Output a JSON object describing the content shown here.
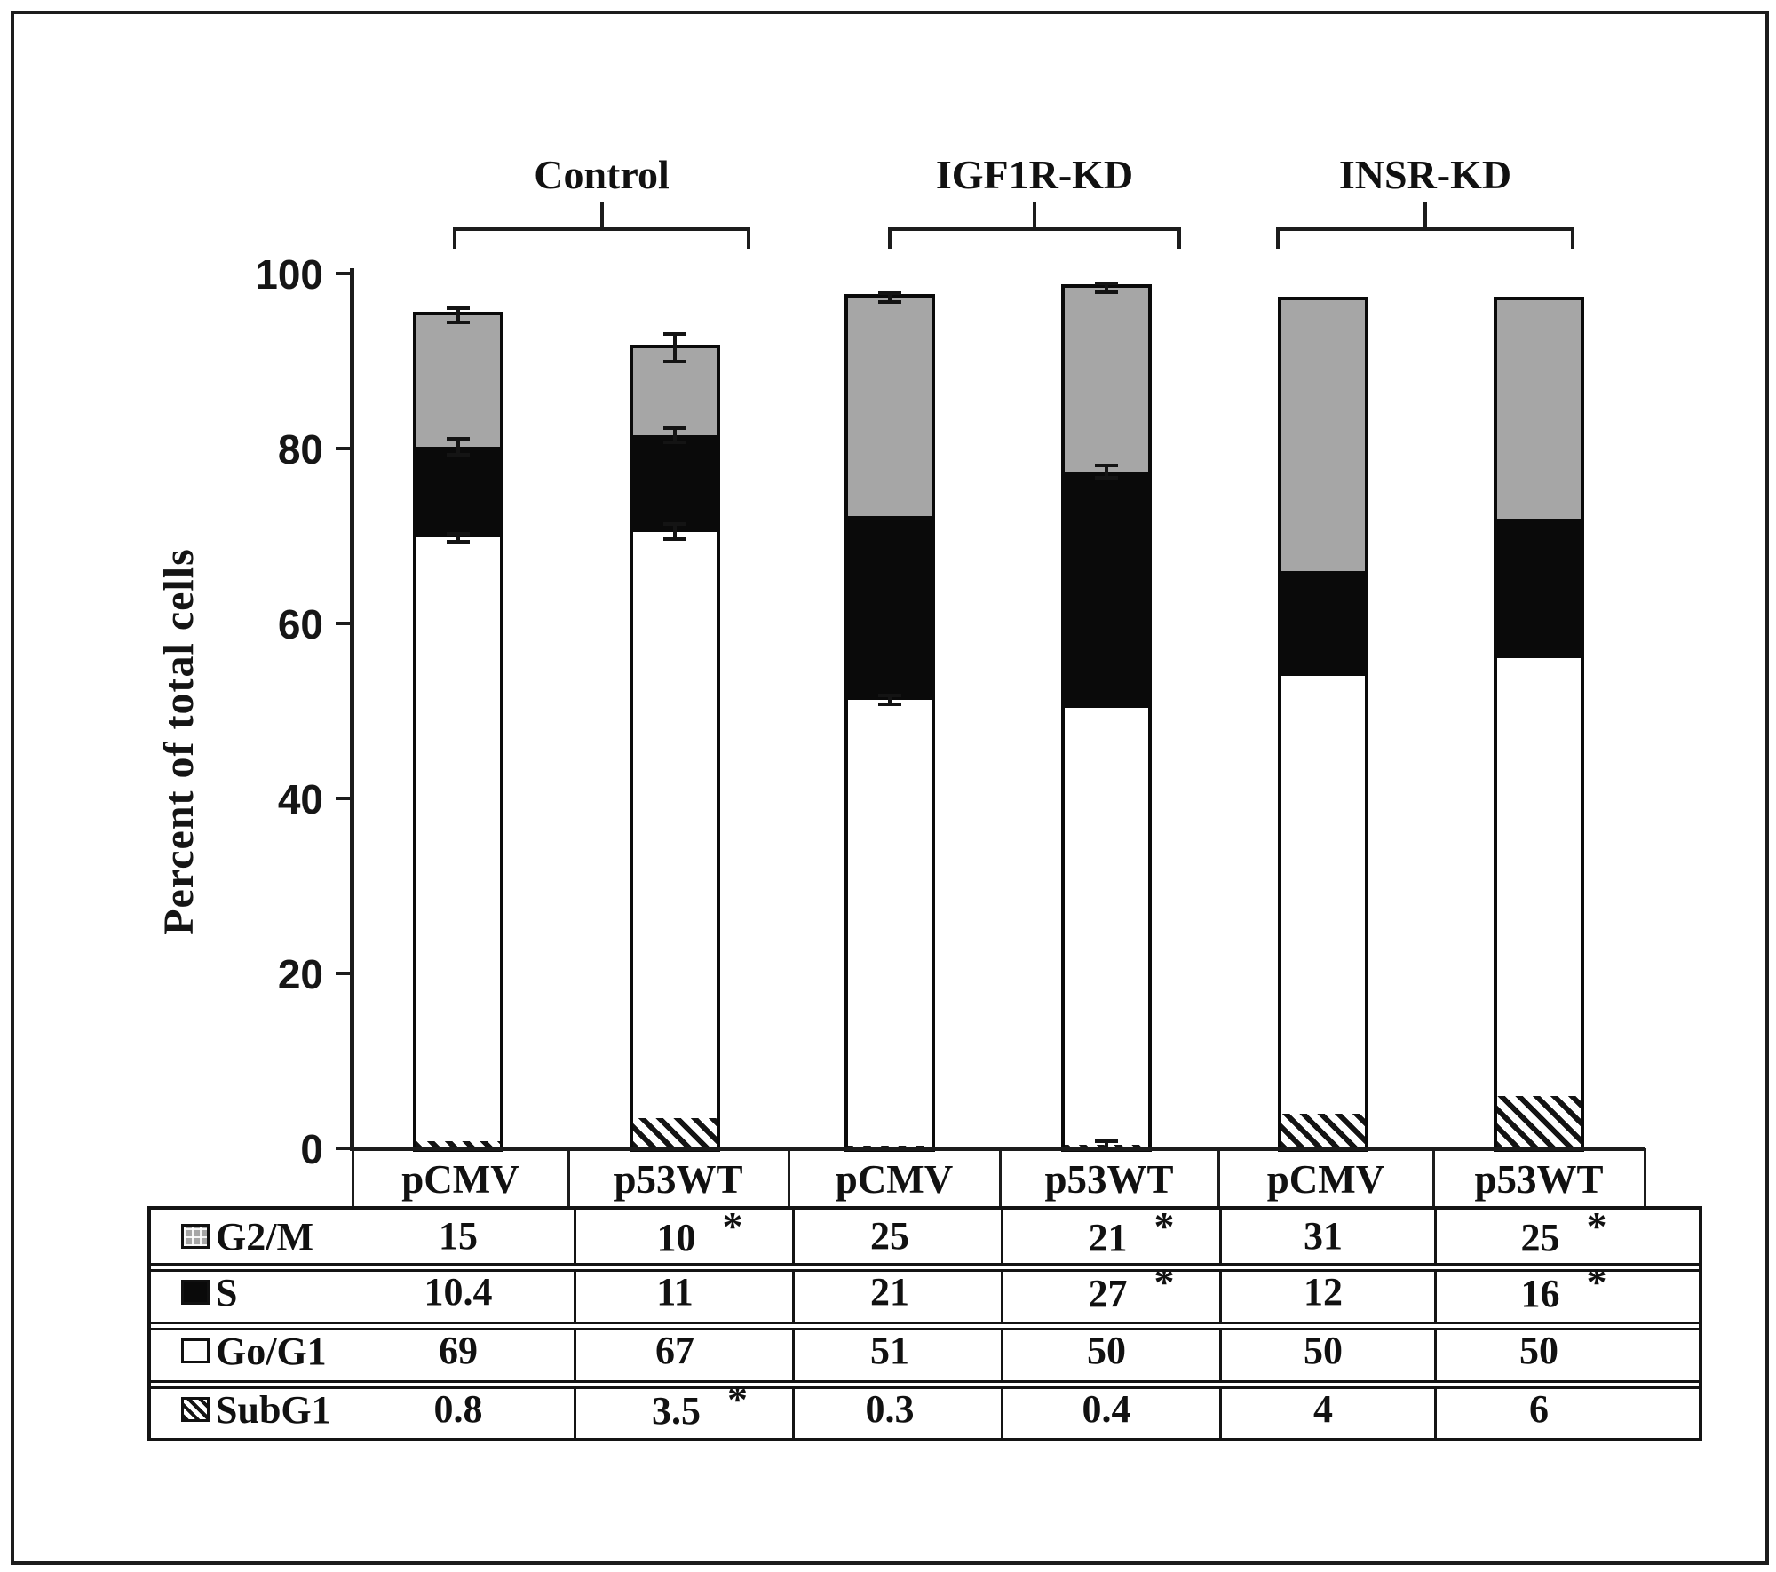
{
  "figure": {
    "ylabel": "Percent of total cells",
    "star_symbol": "*"
  },
  "chart_data": {
    "type": "bar",
    "stacked": true,
    "title": "",
    "xlabel": "",
    "ylabel": "Percent of total cells",
    "ylim": [
      0,
      100
    ],
    "ytick_labels": [
      "0",
      "20",
      "40",
      "60",
      "80",
      "100"
    ],
    "yticks": [
      0,
      20,
      40,
      60,
      80,
      100
    ],
    "grid": false,
    "legend_position": "table-left-column",
    "groups": [
      {
        "label": "Control",
        "bars": [
          0,
          1
        ]
      },
      {
        "label": "IGF1R-KD",
        "bars": [
          2,
          3
        ]
      },
      {
        "label": "INSR-KD",
        "bars": [
          4,
          5
        ]
      }
    ],
    "categories": [
      "pCMV",
      "p53WT",
      "pCMV",
      "p53WT",
      "pCMV",
      "p53WT"
    ],
    "stack_order_bottom_to_top": [
      "SubG1",
      "Go/G1",
      "S",
      "G2/M"
    ],
    "series": [
      {
        "name": "G2/M",
        "pattern": "gray-grid",
        "color": "#a6a6a6",
        "values": [
          15,
          10,
          25,
          21,
          31,
          25
        ]
      },
      {
        "name": "S",
        "pattern": "solid-black",
        "color": "#0a0a0a",
        "values": [
          10.4,
          11,
          21,
          27,
          12,
          16
        ]
      },
      {
        "name": "Go/G1",
        "pattern": "open-white",
        "color": "#ffffff",
        "values": [
          69,
          67,
          51,
          50,
          50,
          50
        ]
      },
      {
        "name": "SubG1",
        "pattern": "diagonal-hatch",
        "color": "#141414",
        "values": [
          0.8,
          3.5,
          0.3,
          0.4,
          4,
          6
        ]
      }
    ],
    "error_bars": [
      {
        "bar": 0,
        "at": 95.2,
        "half": 0.8
      },
      {
        "bar": 0,
        "at": 80.2,
        "half": 0.9
      },
      {
        "bar": 0,
        "at": 69.8,
        "half": 0.5
      },
      {
        "bar": 1,
        "at": 91.5,
        "half": 1.6
      },
      {
        "bar": 1,
        "at": 81.5,
        "half": 0.8
      },
      {
        "bar": 1,
        "at": 70.5,
        "half": 0.9
      },
      {
        "bar": 2,
        "at": 97.3,
        "half": 0.5
      },
      {
        "bar": 2,
        "at": 51.3,
        "half": 0.5
      },
      {
        "bar": 3,
        "at": 98.4,
        "half": 0.5
      },
      {
        "bar": 3,
        "at": 77.4,
        "half": 0.7
      },
      {
        "bar": 3,
        "at": 0.4,
        "half": 0.4
      }
    ]
  },
  "table": {
    "column_headers": [
      "pCMV",
      "p53WT",
      "pCMV",
      "p53WT",
      "pCMV",
      "p53WT"
    ],
    "rows": [
      {
        "legend": "G2/M",
        "swatch": "gray-grid",
        "values": [
          "15",
          "10",
          "25",
          "21",
          "31",
          "25"
        ],
        "stars": [
          false,
          true,
          false,
          true,
          false,
          true
        ]
      },
      {
        "legend": "S",
        "swatch": "solid-black",
        "values": [
          "10.4",
          "11",
          "21",
          "27",
          "12",
          "16"
        ],
        "stars": [
          false,
          false,
          false,
          true,
          false,
          true
        ]
      },
      {
        "legend": "Go/G1",
        "swatch": "open-white",
        "values": [
          "69",
          "67",
          "51",
          "50",
          "50",
          "50"
        ],
        "stars": [
          false,
          false,
          false,
          false,
          false,
          false
        ]
      },
      {
        "legend": "SubG1",
        "swatch": "diagonal-hatch",
        "values": [
          "0.8",
          "3.5",
          "0.3",
          "0.4",
          "4",
          "6"
        ],
        "stars": [
          false,
          true,
          false,
          false,
          false,
          false
        ]
      }
    ]
  }
}
